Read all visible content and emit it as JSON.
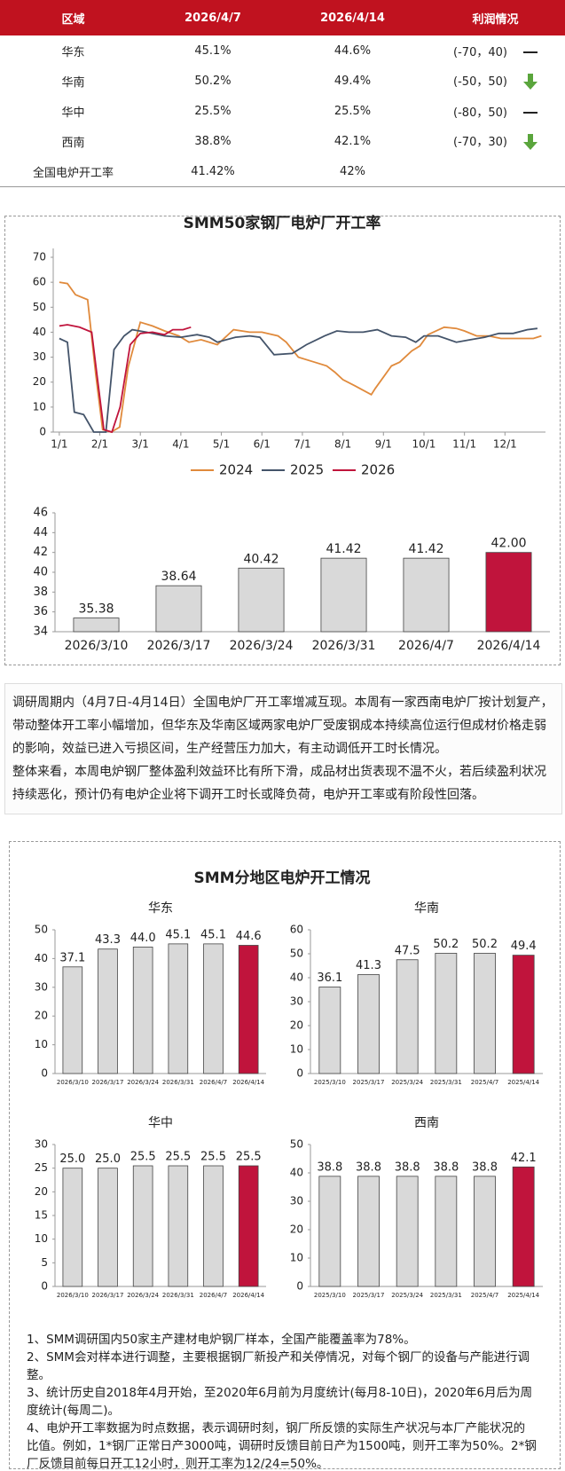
{
  "table": {
    "header": [
      "区域",
      "2026/4/7",
      "2026/4/14",
      "利润情况"
    ],
    "rows": [
      [
        "华东",
        "45.1%",
        "44.6%",
        "(-70，40)"
      ],
      [
        "华南",
        "50.2%",
        "49.4%",
        "(-50，50)"
      ],
      [
        "华中",
        "25.5%",
        "25.5%",
        "(-80，50)"
      ],
      [
        "西南",
        "38.8%",
        "42.1%",
        "(-70，30)"
      ],
      [
        "全国电炉开工率",
        "41.42%",
        "42%",
        ""
      ]
    ]
  },
  "chart_data": [
    {
      "type": "line",
      "title": "SMM50家钢厂电炉厂开工率",
      "xlim": [
        0.85,
        13
      ],
      "xticks": [
        {
          "value": 1,
          "label": "1/1"
        },
        {
          "value": 2,
          "label": "2/1"
        },
        {
          "value": 3,
          "label": "3/1"
        },
        {
          "value": 4,
          "label": "4/1"
        },
        {
          "value": 5,
          "label": "5/1"
        },
        {
          "value": 6,
          "label": "6/1"
        },
        {
          "value": 7,
          "label": "7/1"
        },
        {
          "value": 8,
          "label": "8/1"
        },
        {
          "value": 9,
          "label": "9/1"
        },
        {
          "value": 10,
          "label": "10/1"
        },
        {
          "value": 11,
          "label": "11/1"
        },
        {
          "value": 12,
          "label": "12/1"
        }
      ],
      "ylim": [
        0,
        70
      ],
      "yticks": [
        0,
        10,
        20,
        30,
        40,
        50,
        60,
        70
      ],
      "series": [
        {
          "name": "2024",
          "color": "#e08a3c",
          "x": [
            1.0,
            1.2,
            1.4,
            1.7,
            1.9,
            2.07,
            2.28,
            2.49,
            2.7,
            3.0,
            3.3,
            3.6,
            3.95,
            4.2,
            4.5,
            4.9,
            5.3,
            5.7,
            6.0,
            6.4,
            6.6,
            6.9,
            7.3,
            7.6,
            7.8,
            8.0,
            8.3,
            8.7,
            8.8,
            9.2,
            9.4,
            9.7,
            9.9,
            10.1,
            10.5,
            10.8,
            11.0,
            11.3,
            11.6,
            11.9,
            12.4,
            12.7,
            12.9
          ],
          "values": [
            60,
            59.5,
            55,
            53,
            23,
            1,
            0,
            2,
            26,
            44,
            42.5,
            40.5,
            38.5,
            36,
            37,
            35,
            41,
            40,
            40,
            38.5,
            36,
            30,
            28,
            26.5,
            24,
            21,
            18.5,
            15,
            17.5,
            26.5,
            28,
            32.5,
            34.5,
            39,
            42,
            41.5,
            40.5,
            38.5,
            38.5,
            37.5,
            37.5,
            37.5,
            38.5
          ]
        },
        {
          "name": "2025",
          "color": "#44546a",
          "x": [
            1.0,
            1.2,
            1.37,
            1.6,
            1.85,
            2.15,
            2.35,
            2.6,
            2.8,
            3.15,
            3.6,
            4.0,
            4.4,
            4.7,
            4.9,
            5.35,
            5.7,
            5.95,
            6.3,
            6.75,
            7.1,
            7.55,
            7.85,
            8.15,
            8.5,
            8.85,
            9.2,
            9.55,
            9.8,
            10.0,
            10.35,
            10.8,
            11.15,
            11.5,
            11.85,
            12.2,
            12.55,
            12.8
          ],
          "values": [
            37.5,
            36,
            8,
            7,
            0,
            0,
            33,
            38.5,
            41,
            40,
            38.5,
            38,
            39,
            38,
            36,
            38,
            38.5,
            38,
            31,
            31.5,
            35,
            38.5,
            40.5,
            40,
            40,
            41,
            38.5,
            38,
            36,
            38.5,
            38.5,
            36,
            37,
            38,
            39.5,
            39.5,
            41,
            41.5
          ]
        },
        {
          "name": "2026",
          "color": "#c0143c",
          "x": [
            1.0,
            1.2,
            1.5,
            1.8,
            1.93,
            2.1,
            2.3,
            2.5,
            2.75,
            3.0,
            3.3,
            3.6,
            3.8,
            4.05,
            4.25
          ],
          "values": [
            42.5,
            43,
            42,
            40,
            23,
            1,
            0,
            10,
            35,
            39.5,
            40,
            39,
            41,
            41,
            42
          ]
        }
      ]
    },
    {
      "type": "bar",
      "categories": [
        "2026/3/10",
        "2026/3/17",
        "2026/3/24",
        "2026/3/31",
        "2026/4/7",
        "2026/4/14"
      ],
      "values": [
        35.38,
        38.64,
        40.42,
        41.42,
        41.42,
        42
      ],
      "value_labels": [
        "35.38",
        "38.64",
        "40.42",
        "41.42",
        "41.42",
        "42.00"
      ],
      "colors": [
        "#d9d9d9",
        "#d9d9d9",
        "#d9d9d9",
        "#d9d9d9",
        "#d9d9d9",
        "#c0143c"
      ],
      "ylim": [
        34,
        46
      ],
      "yticks": [
        34,
        36,
        38,
        40,
        42,
        44,
        46
      ]
    },
    {
      "type": "bar",
      "title": "华东",
      "categories": [
        "2026/3/10",
        "2026/3/17",
        "2026/3/24",
        "2026/3/31",
        "2026/4/7",
        "2026/4/14"
      ],
      "values": [
        37.1,
        43.3,
        44,
        45.1,
        45.1,
        44.6
      ],
      "value_labels": [
        "37.1",
        "43.3",
        "44.0",
        "45.1",
        "45.1",
        "44.6"
      ],
      "colors": [
        "#d9d9d9",
        "#d9d9d9",
        "#d9d9d9",
        "#d9d9d9",
        "#d9d9d9",
        "#c0143c"
      ],
      "ylim": [
        0,
        50
      ],
      "yticks": [
        0,
        10,
        20,
        30,
        40,
        50
      ]
    },
    {
      "type": "bar",
      "title": "华南",
      "categories": [
        "2025/3/10",
        "2025/3/17",
        "2025/3/24",
        "2025/3/31",
        "2025/4/7",
        "2025/4/14"
      ],
      "values": [
        36.1,
        41.3,
        47.5,
        50.2,
        50.2,
        49.4
      ],
      "value_labels": [
        "36.1",
        "41.3",
        "47.5",
        "50.2",
        "50.2",
        "49.4"
      ],
      "colors": [
        "#d9d9d9",
        "#d9d9d9",
        "#d9d9d9",
        "#d9d9d9",
        "#d9d9d9",
        "#c0143c"
      ],
      "ylim": [
        0,
        60
      ],
      "yticks": [
        0,
        10,
        20,
        30,
        40,
        50,
        60
      ]
    },
    {
      "type": "bar",
      "title": "华中",
      "categories": [
        "2026/3/10",
        "2026/3/17",
        "2026/3/24",
        "2026/3/31",
        "2026/4/7",
        "2026/4/14"
      ],
      "values": [
        25,
        25,
        25.5,
        25.5,
        25.5,
        25.5
      ],
      "value_labels": [
        "25.0",
        "25.0",
        "25.5",
        "25.5",
        "25.5",
        "25.5"
      ],
      "colors": [
        "#d9d9d9",
        "#d9d9d9",
        "#d9d9d9",
        "#d9d9d9",
        "#d9d9d9",
        "#c0143c"
      ],
      "ylim": [
        0,
        30
      ],
      "yticks": [
        0,
        5,
        10,
        15,
        20,
        25,
        30
      ]
    },
    {
      "type": "bar",
      "title": "西南",
      "categories": [
        "2025/3/10",
        "2025/3/17",
        "2025/3/24",
        "2025/3/31",
        "2025/4/7",
        "2025/4/14"
      ],
      "values": [
        38.8,
        38.8,
        38.8,
        38.8,
        38.8,
        42.1
      ],
      "value_labels": [
        "38.8",
        "38.8",
        "38.8",
        "38.8",
        "38.8",
        "42.1"
      ],
      "colors": [
        "#d9d9d9",
        "#d9d9d9",
        "#d9d9d9",
        "#d9d9d9",
        "#d9d9d9",
        "#c0143c"
      ],
      "ylim": [
        0,
        50
      ],
      "yticks": [
        0,
        10,
        20,
        30,
        40,
        50
      ]
    }
  ],
  "paragraphs": [
    "调研周期内（4月7日-4月14日）全国电炉厂开工率增减互现。本周有一家西南电炉厂按计划复产，带动整体开工率小幅增加，但华东及华南区域两家电炉厂受废钢成本持续高位运行但成材价格走弱的影响，效益已进入亏损区间，生产经营压力加大，有主动调低开工时长情况。",
    "整体来看，本周电炉钢厂整体盈利效益环比有所下滑，成品材出货表现不温不火，若后续盈利状况持续恶化，预计仍有电炉企业将下调开工时长或降负荷，电炉开工率或有阶段性回落。"
  ],
  "section_title": "SMM分地区电炉开工情况",
  "notes": [
    "1、SMM调研国内50家主产建材电炉钢厂样本，全国产能覆盖率为78%。",
    "2、SMM会对样本进行调整，主要根据钢厂新投产和关停情况，对每个钢厂的设备与产能进行调整。",
    "3、统计历史自2018年4月开始，至2020年6月前为月度统计(每月8-10日)，2020年6月后为周度统计(每周二)。",
    "4、电炉开工率数据为时点数据，表示调研时刻，钢厂所反馈的实际生产状况与本厂产能状况的比值。例如，1*钢厂正常日产3000吨，调研时反馈目前日产为1500吨，则开工率为50%。2*钢厂反馈目前每日开工12小时，则开工率为12/24=50%。"
  ]
}
